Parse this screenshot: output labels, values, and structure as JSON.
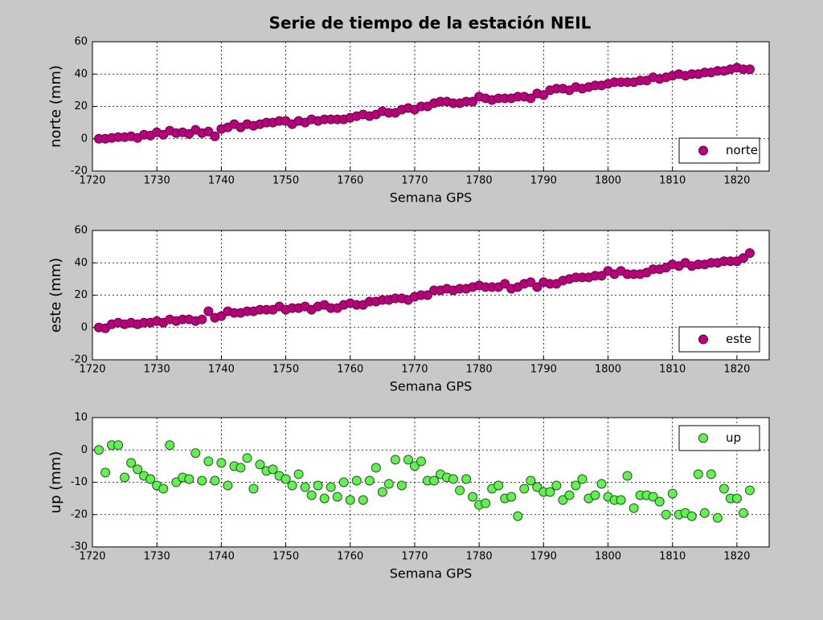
{
  "title": "Serie de tiempo de la estación NEIL",
  "chart_data": [
    {
      "type": "scatter",
      "xlabel": "Semana GPS",
      "ylabel": "norte (mm)",
      "xlim": [
        1720,
        1825
      ],
      "xticks": [
        1720,
        1730,
        1740,
        1750,
        1760,
        1770,
        1780,
        1790,
        1800,
        1810,
        1820
      ],
      "ylim": [
        -20,
        60
      ],
      "yticks": [
        -20,
        0,
        20,
        40,
        60
      ],
      "grid": true,
      "legend": "lower right",
      "x": [
        1721,
        1722,
        1723,
        1724,
        1725,
        1726,
        1727,
        1728,
        1729,
        1730,
        1731,
        1732,
        1733,
        1734,
        1735,
        1736,
        1737,
        1738,
        1739,
        1740,
        1741,
        1742,
        1743,
        1744,
        1745,
        1746,
        1747,
        1748,
        1749,
        1750,
        1751,
        1752,
        1753,
        1754,
        1755,
        1756,
        1757,
        1758,
        1759,
        1760,
        1761,
        1762,
        1763,
        1764,
        1765,
        1766,
        1767,
        1768,
        1769,
        1770,
        1771,
        1772,
        1773,
        1774,
        1775,
        1776,
        1777,
        1778,
        1779,
        1780,
        1781,
        1782,
        1783,
        1784,
        1785,
        1786,
        1787,
        1788,
        1789,
        1790,
        1791,
        1792,
        1793,
        1794,
        1795,
        1796,
        1797,
        1798,
        1799,
        1800,
        1801,
        1802,
        1803,
        1804,
        1805,
        1806,
        1807,
        1808,
        1809,
        1810,
        1811,
        1812,
        1813,
        1814,
        1815,
        1816,
        1817,
        1818,
        1819,
        1820,
        1821,
        1822
      ],
      "series": [
        {
          "name": "norte",
          "color": "#b8007a",
          "edge": "#6a0046",
          "values": [
            0,
            0,
            0.5,
            1,
            1,
            1.5,
            0.5,
            2.5,
            2,
            4,
            2.5,
            5,
            3.5,
            4,
            3,
            5.5,
            3.5,
            4.5,
            1.5,
            6,
            7,
            9,
            7,
            9,
            8,
            9,
            10,
            10,
            11,
            11,
            9,
            11,
            10,
            12,
            11,
            12,
            12,
            12,
            12,
            13,
            14,
            15,
            14,
            15,
            17,
            16,
            16,
            18,
            19,
            18,
            20,
            20,
            22,
            23,
            23,
            22,
            22,
            23,
            23,
            26,
            25,
            24,
            25,
            25,
            25,
            26,
            26,
            25,
            28,
            27,
            30,
            31,
            31,
            30,
            32,
            31,
            32,
            33,
            33,
            34,
            35,
            35,
            35,
            35,
            36,
            36,
            38,
            37,
            38,
            39,
            40,
            39,
            40,
            40,
            41,
            41,
            42,
            42,
            43,
            44,
            43,
            43
          ]
        }
      ]
    },
    {
      "type": "scatter",
      "xlabel": "Semana GPS",
      "ylabel": "este (mm)",
      "xlim": [
        1720,
        1825
      ],
      "xticks": [
        1720,
        1730,
        1740,
        1750,
        1760,
        1770,
        1780,
        1790,
        1800,
        1810,
        1820
      ],
      "ylim": [
        -20,
        60
      ],
      "yticks": [
        -20,
        0,
        20,
        40,
        60
      ],
      "grid": true,
      "legend": "lower right",
      "x": [
        1721,
        1722,
        1723,
        1724,
        1725,
        1726,
        1727,
        1728,
        1729,
        1730,
        1731,
        1732,
        1733,
        1734,
        1735,
        1736,
        1737,
        1738,
        1739,
        1740,
        1741,
        1742,
        1743,
        1744,
        1745,
        1746,
        1747,
        1748,
        1749,
        1750,
        1751,
        1752,
        1753,
        1754,
        1755,
        1756,
        1757,
        1758,
        1759,
        1760,
        1761,
        1762,
        1763,
        1764,
        1765,
        1766,
        1767,
        1768,
        1769,
        1770,
        1771,
        1772,
        1773,
        1774,
        1775,
        1776,
        1777,
        1778,
        1779,
        1780,
        1781,
        1782,
        1783,
        1784,
        1785,
        1786,
        1787,
        1788,
        1789,
        1790,
        1791,
        1792,
        1793,
        1794,
        1795,
        1796,
        1797,
        1798,
        1799,
        1800,
        1801,
        1802,
        1803,
        1804,
        1805,
        1806,
        1807,
        1808,
        1809,
        1810,
        1811,
        1812,
        1813,
        1814,
        1815,
        1816,
        1817,
        1818,
        1819,
        1820,
        1821,
        1822
      ],
      "series": [
        {
          "name": "este",
          "color": "#b8007a",
          "edge": "#6a0046",
          "values": [
            0,
            -0.5,
            2,
            3,
            2,
            3,
            2,
            3,
            3,
            4,
            3,
            5,
            4,
            5,
            5,
            4,
            5,
            10,
            6,
            7,
            10,
            9,
            9,
            10,
            10,
            11,
            11,
            11,
            13,
            11,
            12,
            12,
            13,
            11,
            13,
            14,
            12,
            12,
            14,
            15,
            14,
            14,
            16,
            16,
            17,
            17,
            18,
            18,
            17,
            19,
            20,
            20,
            23,
            23,
            24,
            23,
            24,
            24,
            25,
            26,
            25,
            25,
            25,
            27,
            24,
            25,
            27,
            28,
            25,
            28,
            27,
            27,
            29,
            30,
            31,
            31,
            31,
            32,
            32,
            35,
            33,
            35,
            33,
            33,
            33,
            34,
            36,
            36,
            37,
            39,
            38,
            40,
            38,
            39,
            39,
            40,
            40,
            41,
            41,
            41,
            43,
            46
          ]
        }
      ]
    },
    {
      "type": "scatter",
      "xlabel": "Semana GPS",
      "ylabel": "up (mm)",
      "xlim": [
        1720,
        1825
      ],
      "xticks": [
        1720,
        1730,
        1740,
        1750,
        1760,
        1770,
        1780,
        1790,
        1800,
        1810,
        1820
      ],
      "ylim": [
        -30,
        10
      ],
      "yticks": [
        -30,
        -20,
        -10,
        0,
        10
      ],
      "grid": true,
      "legend": "upper right",
      "x": [
        1721,
        1722,
        1723,
        1724,
        1725,
        1726,
        1727,
        1728,
        1729,
        1730,
        1731,
        1732,
        1733,
        1734,
        1735,
        1736,
        1737,
        1738,
        1739,
        1740,
        1741,
        1742,
        1743,
        1744,
        1745,
        1746,
        1747,
        1748,
        1749,
        1750,
        1751,
        1752,
        1753,
        1754,
        1755,
        1756,
        1757,
        1758,
        1759,
        1760,
        1761,
        1762,
        1763,
        1764,
        1765,
        1766,
        1767,
        1768,
        1769,
        1770,
        1771,
        1772,
        1773,
        1774,
        1775,
        1776,
        1777,
        1778,
        1779,
        1780,
        1781,
        1782,
        1783,
        1784,
        1785,
        1786,
        1787,
        1788,
        1789,
        1790,
        1791,
        1792,
        1793,
        1794,
        1795,
        1796,
        1797,
        1798,
        1799,
        1800,
        1801,
        1802,
        1803,
        1804,
        1805,
        1806,
        1807,
        1808,
        1809,
        1810,
        1811,
        1812,
        1813,
        1814,
        1815,
        1816,
        1817,
        1818,
        1819,
        1820,
        1821,
        1822
      ],
      "series": [
        {
          "name": "up",
          "color": "#66ee55",
          "edge": "#1f5a1a",
          "values": [
            0,
            -7,
            1.5,
            1.5,
            -8.5,
            -4,
            -6,
            -8,
            -9,
            -11,
            -12,
            1.5,
            -10,
            -8.5,
            -9,
            -1,
            -9.5,
            -3.5,
            -9.5,
            -4,
            -11,
            -5,
            -5.5,
            -2.5,
            -12,
            -4.5,
            -6.5,
            -6,
            -8,
            -9,
            -11,
            -7.5,
            -11.5,
            -14,
            -11,
            -15,
            -11.5,
            -14.5,
            -10,
            -15.5,
            -9.5,
            -15.5,
            -9.5,
            -5.5,
            -13,
            -10.5,
            -3,
            -11,
            -3,
            -5,
            -3.5,
            -9.5,
            -9.5,
            -7.5,
            -8.5,
            -9,
            -12.5,
            -9,
            -14.5,
            -17,
            -16.5,
            -12,
            -11,
            -15,
            -14.5,
            -20.5,
            -12,
            -9.5,
            -11.5,
            -13,
            -13,
            -11,
            -15.5,
            -14,
            -11,
            -9,
            -15,
            -14,
            -10.5,
            -14.5,
            -15.5,
            -15.5,
            -8,
            -18,
            -14,
            -14,
            -14.5,
            -16,
            -20,
            -13.5,
            -20,
            -19.5,
            -20.5,
            -7.5,
            -19.5,
            -7.5,
            -21,
            -12,
            -15,
            -15,
            -19.5,
            -12.5
          ]
        }
      ]
    }
  ]
}
